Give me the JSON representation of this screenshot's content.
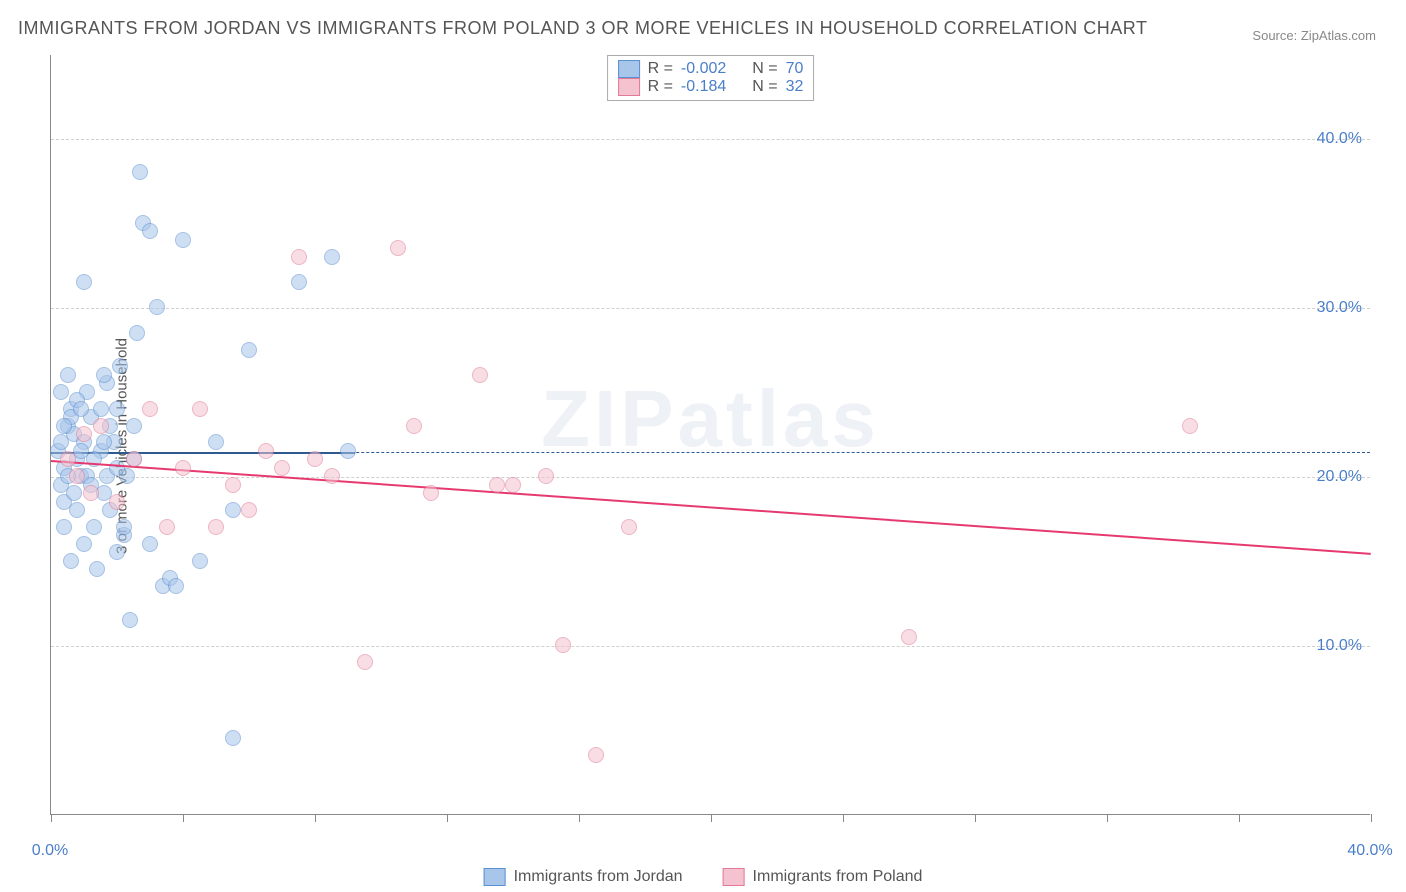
{
  "title": "IMMIGRANTS FROM JORDAN VS IMMIGRANTS FROM POLAND 3 OR MORE VEHICLES IN HOUSEHOLD CORRELATION CHART",
  "source_label": "Source:",
  "source_name": "ZipAtlas.com",
  "watermark": "ZIPatlas",
  "ylabel": "3 or more Vehicles in Household",
  "chart": {
    "type": "scatter",
    "background_color": "#ffffff",
    "grid_color": "#d0d0d0",
    "xlim": [
      0,
      40
    ],
    "ylim": [
      0,
      45
    ],
    "xticks": [
      0,
      4,
      8,
      12,
      16,
      20,
      24,
      28,
      32,
      36,
      40
    ],
    "xtick_labels": {
      "0": "0.0%",
      "40": "40.0%"
    },
    "yticks": [
      10,
      20,
      30,
      40
    ],
    "ytick_labels": {
      "10": "10.0%",
      "20": "20.0%",
      "30": "30.0%",
      "40": "40.0%"
    },
    "dashed_ref_y": 21.5,
    "dashed_ref_color": "#2e5a8f",
    "point_radius": 8,
    "point_opacity": 0.55,
    "series": [
      {
        "name": "Immigrants from Jordan",
        "color_fill": "#a8c5ea",
        "color_stroke": "#5a8fd0",
        "r_label": "R =",
        "r_value": "-0.002",
        "n_label": "N =",
        "n_value": "70",
        "trend": {
          "x0": 0,
          "y0": 21.5,
          "x1": 9.2,
          "y1": 21.5,
          "color": "#2e5a8f",
          "width": 2
        },
        "points": [
          [
            0.2,
            21.5
          ],
          [
            0.3,
            22
          ],
          [
            0.4,
            20.5
          ],
          [
            0.5,
            23
          ],
          [
            0.6,
            24
          ],
          [
            0.3,
            19.5
          ],
          [
            0.4,
            18.5
          ],
          [
            0.7,
            22.5
          ],
          [
            0.8,
            21
          ],
          [
            0.9,
            20
          ],
          [
            1.0,
            16
          ],
          [
            1.1,
            25
          ],
          [
            1.2,
            23.5
          ],
          [
            1.3,
            17
          ],
          [
            0.5,
            26
          ],
          [
            0.6,
            15
          ],
          [
            1.5,
            24
          ],
          [
            1.6,
            19
          ],
          [
            1.7,
            25.5
          ],
          [
            1.8,
            18
          ],
          [
            1.9,
            22
          ],
          [
            2.0,
            15.5
          ],
          [
            2.1,
            26.5
          ],
          [
            2.2,
            16.5
          ],
          [
            2.3,
            20
          ],
          [
            2.4,
            11.5
          ],
          [
            2.5,
            21
          ],
          [
            2.6,
            28.5
          ],
          [
            2.7,
            38
          ],
          [
            2.8,
            35
          ],
          [
            3.0,
            34.5
          ],
          [
            3.2,
            30
          ],
          [
            3.4,
            13.5
          ],
          [
            3.6,
            14
          ],
          [
            3.8,
            13.5
          ],
          [
            4.0,
            34
          ],
          [
            4.5,
            15
          ],
          [
            5.0,
            22
          ],
          [
            5.5,
            18
          ],
          [
            6.0,
            27.5
          ],
          [
            7.5,
            31.5
          ],
          [
            8.5,
            33
          ],
          [
            9.0,
            21.5
          ],
          [
            1.0,
            31.5
          ],
          [
            0.8,
            24.5
          ],
          [
            1.4,
            14.5
          ],
          [
            1.6,
            26
          ],
          [
            0.4,
            17
          ],
          [
            0.6,
            23.5
          ],
          [
            5.5,
            4.5
          ],
          [
            0.9,
            24
          ],
          [
            1.1,
            20
          ],
          [
            1.5,
            21.5
          ],
          [
            2.0,
            24
          ],
          [
            0.3,
            25
          ],
          [
            0.7,
            19
          ],
          [
            1.8,
            23
          ],
          [
            2.2,
            17
          ],
          [
            0.5,
            20
          ],
          [
            0.8,
            18
          ],
          [
            1.0,
            22
          ],
          [
            1.3,
            21
          ],
          [
            1.7,
            20
          ],
          [
            2.5,
            23
          ],
          [
            3.0,
            16
          ],
          [
            0.4,
            23
          ],
          [
            0.9,
            21.5
          ],
          [
            1.2,
            19.5
          ],
          [
            1.6,
            22
          ],
          [
            2.0,
            20.5
          ]
        ]
      },
      {
        "name": "Immigrants from Poland",
        "color_fill": "#f5c2cf",
        "color_stroke": "#e07a95",
        "r_label": "R =",
        "r_value": "-0.184",
        "n_label": "N =",
        "n_value": "32",
        "trend": {
          "x0": 0,
          "y0": 21,
          "x1": 40,
          "y1": 15.5,
          "color": "#e63970",
          "width": 2
        },
        "points": [
          [
            0.5,
            21
          ],
          [
            0.8,
            20
          ],
          [
            1.0,
            22.5
          ],
          [
            1.2,
            19
          ],
          [
            1.5,
            23
          ],
          [
            2.0,
            18.5
          ],
          [
            2.5,
            21
          ],
          [
            3.0,
            24
          ],
          [
            3.5,
            17
          ],
          [
            4.0,
            20.5
          ],
          [
            5.0,
            17
          ],
          [
            5.5,
            19.5
          ],
          [
            6.0,
            18
          ],
          [
            7.0,
            20.5
          ],
          [
            7.5,
            33
          ],
          [
            8.0,
            21
          ],
          [
            10.5,
            33.5
          ],
          [
            11.0,
            23
          ],
          [
            13.0,
            26
          ],
          [
            13.5,
            19.5
          ],
          [
            14.0,
            19.5
          ],
          [
            15.0,
            20
          ],
          [
            17.5,
            17
          ],
          [
            9.5,
            9
          ],
          [
            15.5,
            10
          ],
          [
            26.0,
            10.5
          ],
          [
            16.5,
            3.5
          ],
          [
            34.5,
            23
          ],
          [
            4.5,
            24
          ],
          [
            6.5,
            21.5
          ],
          [
            8.5,
            20
          ],
          [
            11.5,
            19
          ]
        ]
      }
    ]
  }
}
